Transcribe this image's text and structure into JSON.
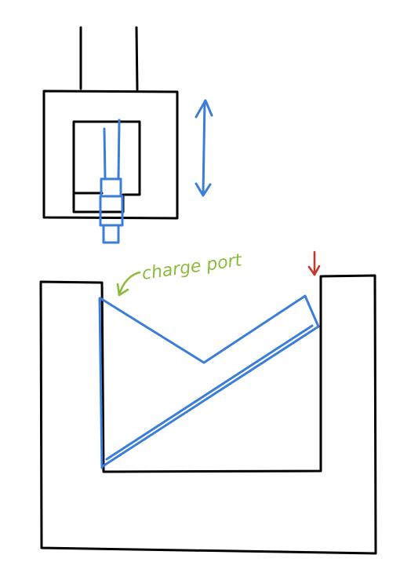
{
  "annotations": {
    "charge_port_label": "charge port"
  },
  "colors": {
    "structure": "#000000",
    "mechanism": "#3b7ed8",
    "annotation": "#8dbb3c",
    "marker": "#c0392b"
  }
}
